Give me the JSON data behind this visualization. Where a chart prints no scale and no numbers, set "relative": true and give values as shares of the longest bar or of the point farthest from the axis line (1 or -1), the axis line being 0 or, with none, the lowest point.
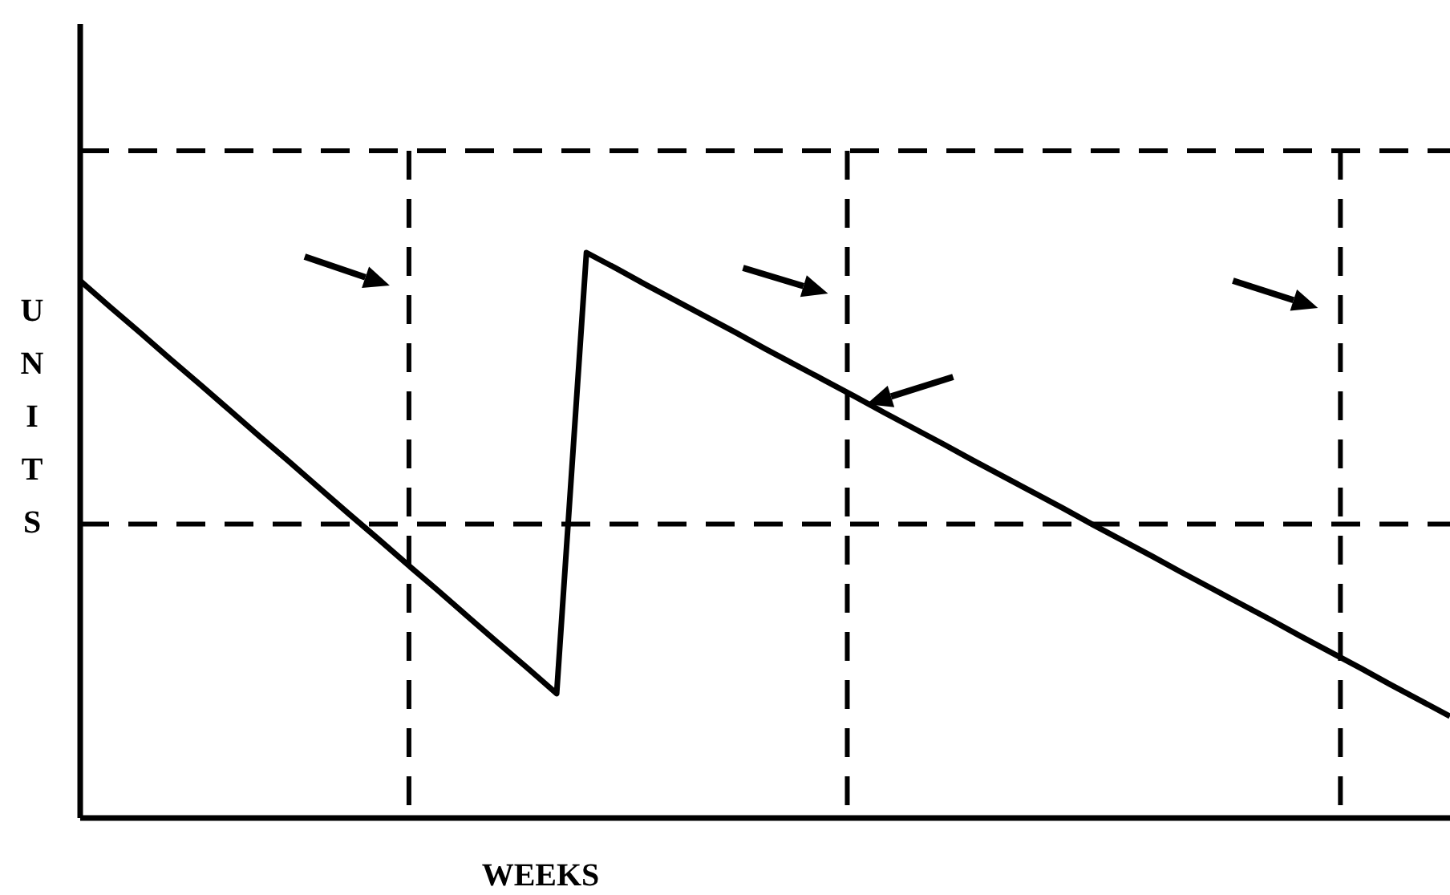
{
  "chart_data": {
    "type": "line",
    "relative": true,
    "xlabel": "WEEKS",
    "ylabel": "UNITS",
    "line_style": "solid",
    "tick_labels": false,
    "grid": false,
    "legend": false,
    "marker": "none",
    "categories": [
      null,
      null,
      null,
      null,
      null,
      null,
      null,
      null,
      null,
      null,
      null,
      null,
      null,
      null,
      null,
      null,
      null,
      null,
      null,
      null,
      null,
      null,
      null,
      null,
      null,
      null,
      null,
      null,
      null,
      null,
      null,
      null,
      null,
      null,
      null,
      null,
      null,
      null,
      null,
      null,
      null,
      null,
      null,
      null,
      null,
      null,
      null
    ],
    "series": [
      {
        "color": "#000000",
        "values": [
          0.95,
          0.904,
          0.859,
          0.813,
          0.768,
          0.722,
          0.676,
          0.631,
          0.585,
          0.539,
          0.494,
          0.448,
          0.403,
          0.357,
          0.311,
          0.266,
          0.22,
          1.0,
          0.972,
          0.943,
          0.915,
          0.887,
          0.859,
          0.83,
          0.802,
          0.774,
          0.746,
          0.717,
          0.689,
          0.661,
          0.632,
          0.604,
          0.576,
          0.548,
          0.519,
          0.491,
          0.463,
          0.434,
          0.406,
          0.378,
          0.35,
          0.321,
          0.293,
          0.265,
          0.236,
          0.208,
          0.18
        ]
      }
    ],
    "ref_lines": [
      {
        "axis": "y",
        "value": 1.18,
        "line_style": "dashed",
        "color": "#000000"
      },
      {
        "axis": "y",
        "value": 0.52,
        "line_style": "dashed",
        "color": "#000000"
      }
    ]
  }
}
